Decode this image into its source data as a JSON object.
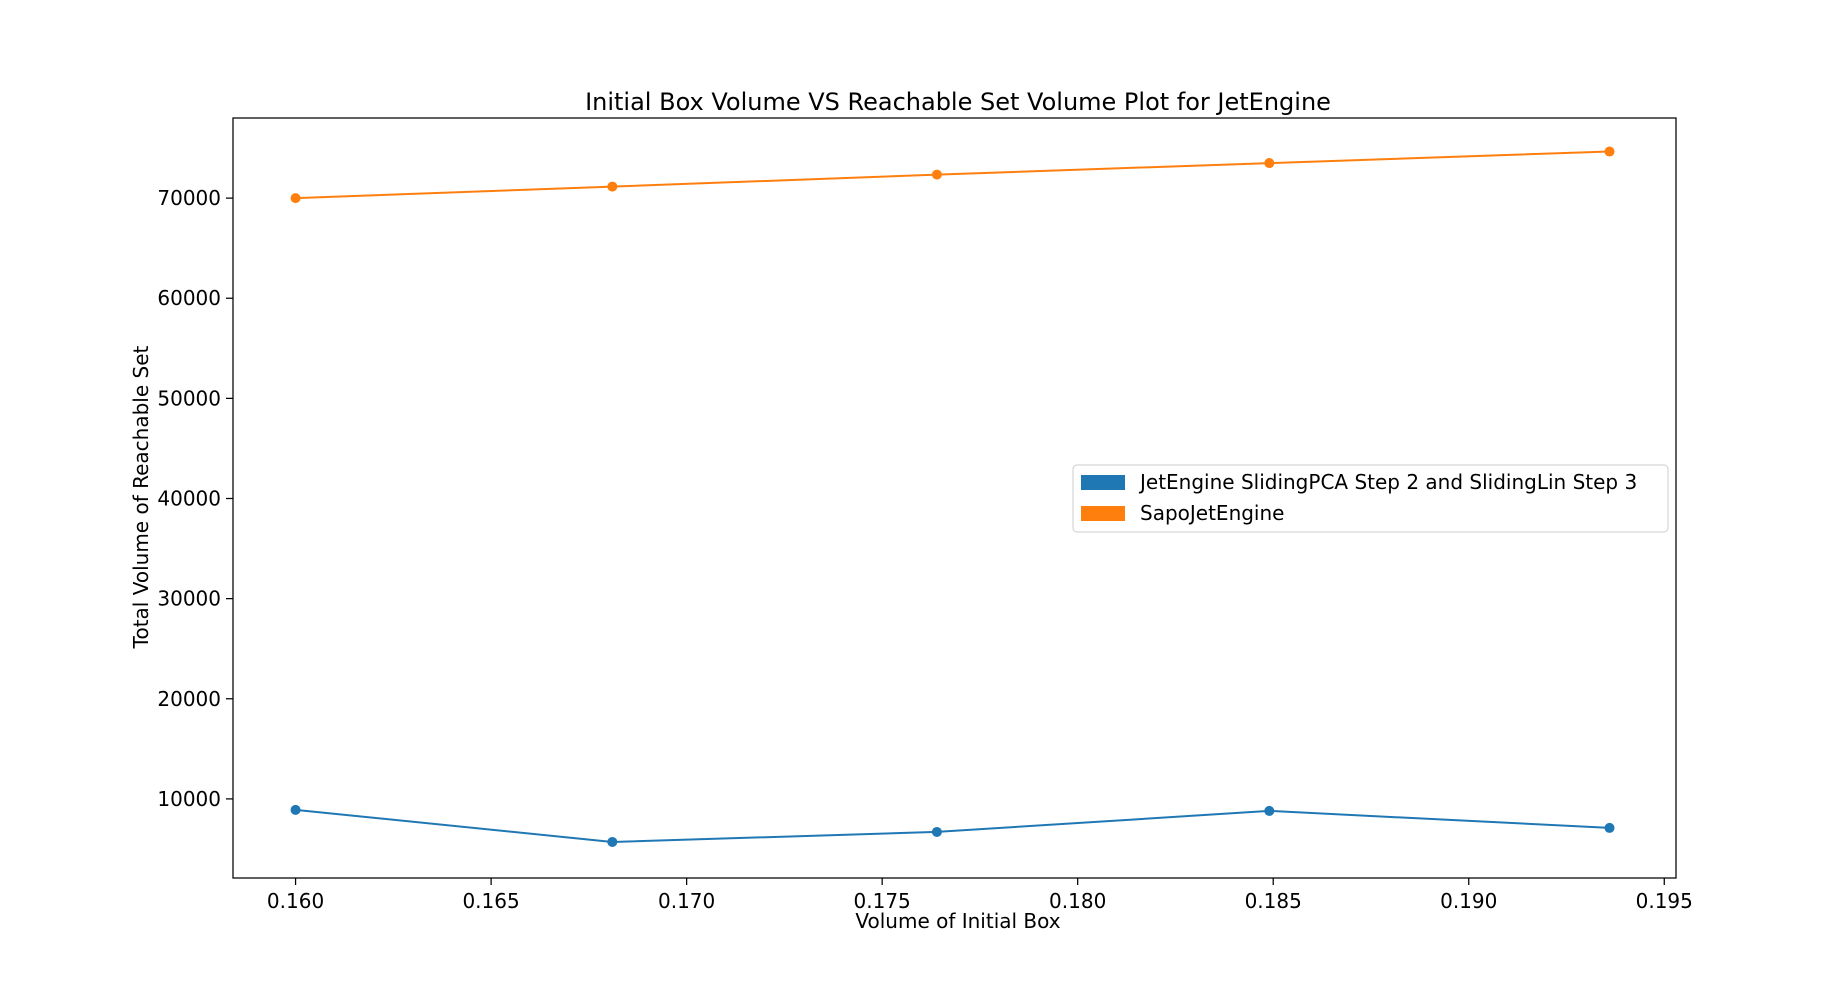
{
  "chart_data": {
    "type": "line",
    "title": "Initial Box Volume VS Reachable Set Volume Plot for JetEngine",
    "xlabel": "Volume of Initial Box",
    "ylabel": "Total Volume of Reachable Set",
    "xlim": [
      0.1584,
      0.1953
    ],
    "ylim": [
      2100,
      78000
    ],
    "xticks": [
      0.16,
      0.165,
      0.17,
      0.175,
      0.18,
      0.185,
      0.19,
      0.195
    ],
    "xtick_labels": [
      "0.160",
      "0.165",
      "0.170",
      "0.175",
      "0.180",
      "0.185",
      "0.190",
      "0.195"
    ],
    "yticks": [
      10000,
      20000,
      30000,
      40000,
      50000,
      60000,
      70000
    ],
    "ytick_labels": [
      "10000",
      "20000",
      "30000",
      "40000",
      "50000",
      "60000",
      "70000"
    ],
    "grid": false,
    "legend_position": "center-right",
    "x": [
      0.16,
      0.1681,
      0.1764,
      0.1849,
      0.1936
    ],
    "series": [
      {
        "name": "JetEngine SlidingPCA Step 2 and SlidingLin Step 3",
        "color": "#1f77b4",
        "values": [
          8900,
          5700,
          6700,
          8800,
          7100
        ]
      },
      {
        "name": "SapoJetEngine",
        "color": "#ff7f0e",
        "values": [
          70000,
          71150,
          72350,
          73500,
          74650
        ]
      }
    ]
  }
}
